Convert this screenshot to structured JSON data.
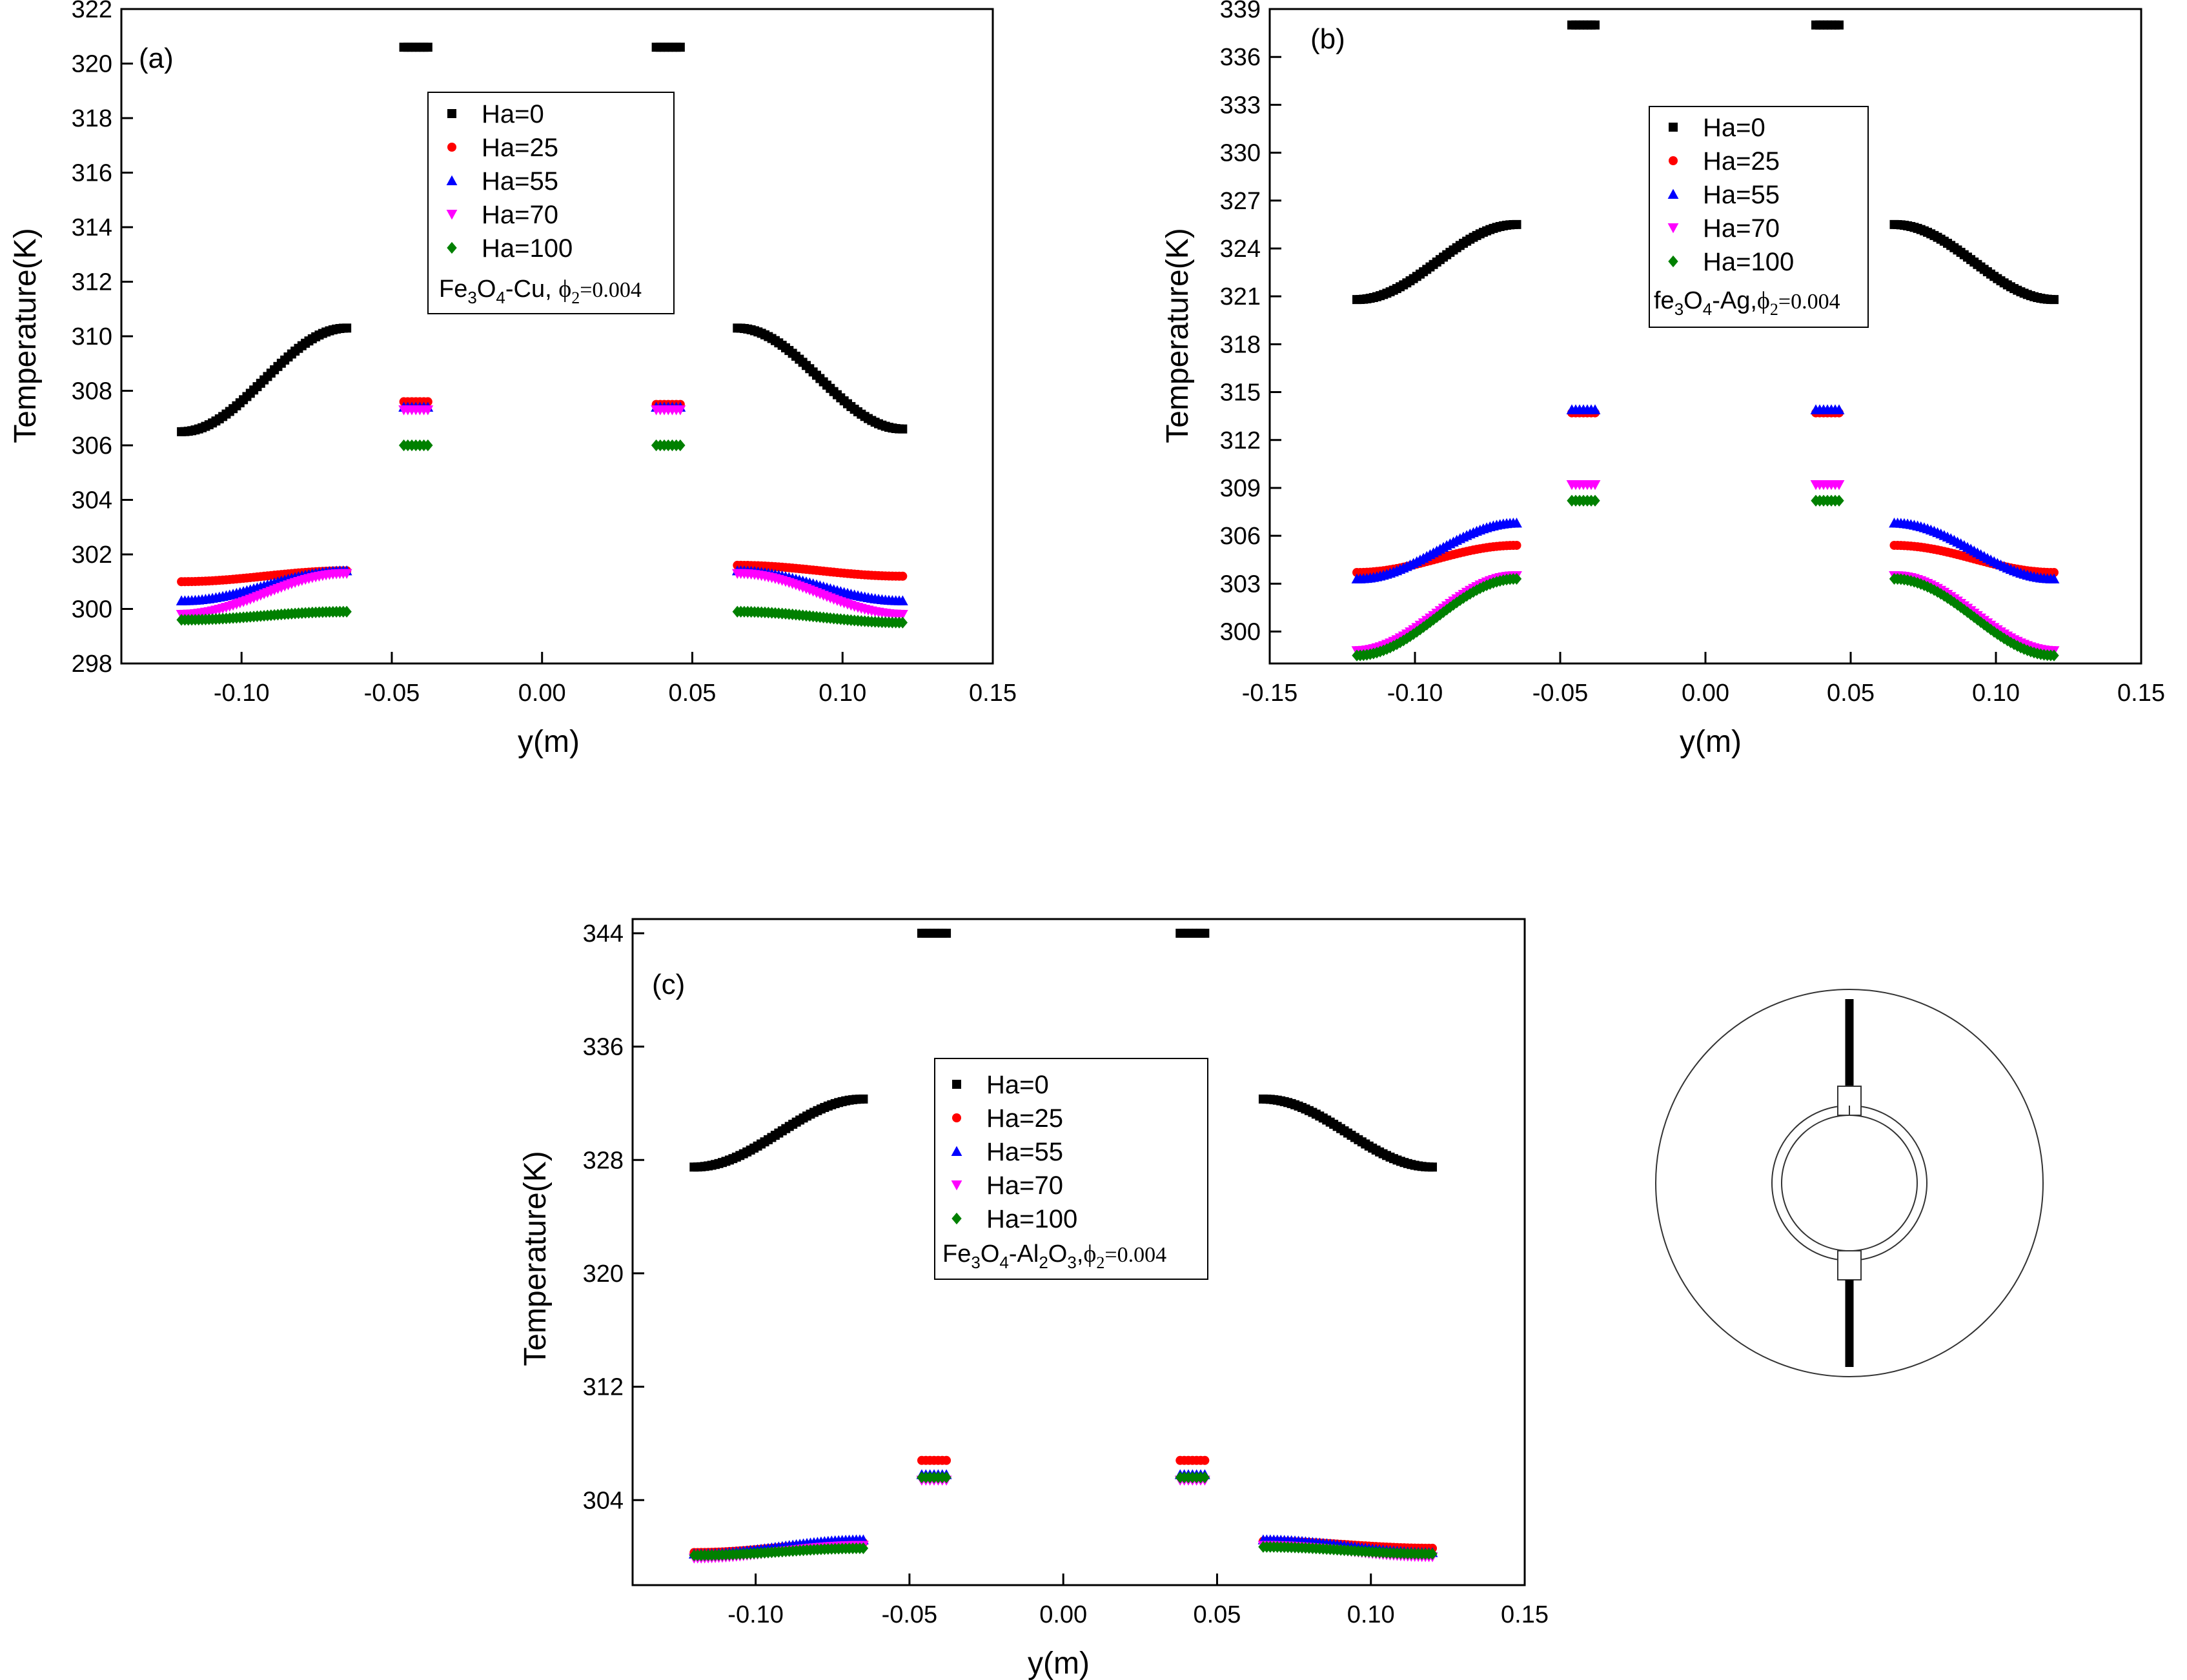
{
  "figure": {
    "inset": "cylinder-cross-section-diagram"
  },
  "colors": {
    "Ha=0": "#000000",
    "Ha=25": "#ff0000",
    "Ha=55": "#0000ff",
    "Ha=70": "#ff00ff",
    "Ha=100": "#008000"
  },
  "chart_data": [
    {
      "id": "a",
      "type": "scatter",
      "panel_label": "(a)",
      "title": "",
      "xlabel": "y(m)",
      "ylabel": "Temperature(K)",
      "xlim": [
        -0.14,
        0.15
      ],
      "ylim": [
        298,
        322
      ],
      "xticks": [
        -0.1,
        -0.05,
        0.0,
        0.05,
        0.1,
        0.15
      ],
      "xtick_labels": [
        "-0.10",
        "-0.05",
        "0.00",
        "0.05",
        "0.10",
        "0.15"
      ],
      "yticks": [
        298,
        300,
        302,
        304,
        306,
        308,
        310,
        312,
        314,
        316,
        318,
        320,
        322
      ],
      "legend": {
        "position": "top-center",
        "entries": [
          "Ha=0",
          "Ha=25",
          "Ha=55",
          "Ha=70",
          "Ha=100"
        ],
        "annotation": {
          "main": "Fe",
          "s1": "3",
          "mid": "O",
          "s2": "4",
          "tail": "-Cu, ",
          "phi": "ϕ",
          "phisub": "2",
          "value": "=0.004"
        }
      },
      "series": [
        {
          "name": "Ha=0",
          "marker": "square",
          "left": {
            "x": [
              -0.12,
              -0.065
            ],
            "y": [
              306.5,
              310.3
            ]
          },
          "right": {
            "x": [
              0.065,
              0.12
            ],
            "y": [
              310.3,
              306.6
            ]
          },
          "block_left": {
            "x": [
              -0.046,
              -0.038
            ],
            "y": 320.6
          },
          "block_right": {
            "x": [
              0.038,
              0.046
            ],
            "y": 320.6
          }
        },
        {
          "name": "Ha=25",
          "marker": "circle",
          "left": {
            "x": [
              -0.12,
              -0.065
            ],
            "y": [
              301.0,
              301.4
            ]
          },
          "right": {
            "x": [
              0.065,
              0.12
            ],
            "y": [
              301.6,
              301.2
            ]
          },
          "block_left": {
            "x": [
              -0.046,
              -0.038
            ],
            "y": 307.6
          },
          "block_right": {
            "x": [
              0.038,
              0.046
            ],
            "y": 307.5
          }
        },
        {
          "name": "Ha=55",
          "marker": "triangle-up",
          "left": {
            "x": [
              -0.12,
              -0.065
            ],
            "y": [
              300.3,
              301.4
            ]
          },
          "right": {
            "x": [
              0.065,
              0.12
            ],
            "y": [
              301.4,
              300.3
            ]
          },
          "block_left": {
            "x": [
              -0.046,
              -0.038
            ],
            "y": 307.4
          },
          "block_right": {
            "x": [
              0.038,
              0.046
            ],
            "y": 307.4
          }
        },
        {
          "name": "Ha=70",
          "marker": "triangle-down",
          "left": {
            "x": [
              -0.12,
              -0.065
            ],
            "y": [
              299.8,
              301.3
            ]
          },
          "right": {
            "x": [
              0.065,
              0.12
            ],
            "y": [
              301.3,
              299.8
            ]
          },
          "block_left": {
            "x": [
              -0.046,
              -0.038
            ],
            "y": 307.3
          },
          "block_right": {
            "x": [
              0.038,
              0.046
            ],
            "y": 307.3
          }
        },
        {
          "name": "Ha=100",
          "marker": "diamond",
          "left": {
            "x": [
              -0.12,
              -0.065
            ],
            "y": [
              299.6,
              299.9
            ]
          },
          "right": {
            "x": [
              0.065,
              0.12
            ],
            "y": [
              299.9,
              299.5
            ]
          },
          "block_left": {
            "x": [
              -0.046,
              -0.038
            ],
            "y": 306.0
          },
          "block_right": {
            "x": [
              0.038,
              0.046
            ],
            "y": 306.0
          }
        }
      ]
    },
    {
      "id": "b",
      "type": "scatter",
      "panel_label": "(b)",
      "title": "",
      "xlabel": "y(m)",
      "ylabel": "Temperature(K)",
      "xlim": [
        -0.15,
        0.15
      ],
      "ylim": [
        298,
        339
      ],
      "xticks": [
        -0.15,
        -0.1,
        -0.05,
        0.0,
        0.05,
        0.1,
        0.15
      ],
      "xtick_labels": [
        "-0.15",
        "-0.10",
        "-0.05",
        "0.00",
        "0.05",
        "0.10",
        "0.15"
      ],
      "yticks": [
        300,
        303,
        306,
        309,
        312,
        315,
        318,
        321,
        324,
        327,
        330,
        333,
        336,
        339
      ],
      "legend": {
        "position": "top-right",
        "entries": [
          "Ha=0",
          "Ha=25",
          "Ha=55",
          "Ha=70",
          "Ha=100"
        ],
        "annotation": {
          "main": "fe",
          "s1": "3",
          "mid": "O",
          "s2": "4",
          "tail": "-Ag,",
          "phi": "ϕ",
          "phisub": "2",
          "value": "=0.004"
        }
      },
      "series": [
        {
          "name": "Ha=0",
          "marker": "square",
          "left": {
            "x": [
              -0.12,
              -0.065
            ],
            "y": [
              320.8,
              325.5
            ]
          },
          "right": {
            "x": [
              0.065,
              0.12
            ],
            "y": [
              325.5,
              320.8
            ]
          },
          "block_left": {
            "x": [
              -0.046,
              -0.038
            ],
            "y": 338.0
          },
          "block_right": {
            "x": [
              0.038,
              0.046
            ],
            "y": 338.0
          }
        },
        {
          "name": "Ha=25",
          "marker": "circle",
          "left": {
            "x": [
              -0.12,
              -0.065
            ],
            "y": [
              303.7,
              305.4
            ]
          },
          "right": {
            "x": [
              0.065,
              0.12
            ],
            "y": [
              305.4,
              303.7
            ]
          },
          "block_left": {
            "x": [
              -0.046,
              -0.038
            ],
            "y": 313.7
          },
          "block_right": {
            "x": [
              0.038,
              0.046
            ],
            "y": 313.7
          }
        },
        {
          "name": "Ha=55",
          "marker": "triangle-up",
          "left": {
            "x": [
              -0.12,
              -0.065
            ],
            "y": [
              303.3,
              306.8
            ]
          },
          "right": {
            "x": [
              0.065,
              0.12
            ],
            "y": [
              306.8,
              303.3
            ]
          },
          "block_left": {
            "x": [
              -0.046,
              -0.038
            ],
            "y": 313.9
          },
          "block_right": {
            "x": [
              0.038,
              0.046
            ],
            "y": 313.9
          }
        },
        {
          "name": "Ha=70",
          "marker": "triangle-down",
          "left": {
            "x": [
              -0.12,
              -0.065
            ],
            "y": [
              298.8,
              303.5
            ]
          },
          "right": {
            "x": [
              0.065,
              0.12
            ],
            "y": [
              303.5,
              298.8
            ]
          },
          "block_left": {
            "x": [
              -0.046,
              -0.038
            ],
            "y": 309.2
          },
          "block_right": {
            "x": [
              0.038,
              0.046
            ],
            "y": 309.2
          }
        },
        {
          "name": "Ha=100",
          "marker": "diamond",
          "left": {
            "x": [
              -0.12,
              -0.065
            ],
            "y": [
              298.5,
              303.3
            ]
          },
          "right": {
            "x": [
              0.065,
              0.12
            ],
            "y": [
              303.3,
              298.5
            ]
          },
          "block_left": {
            "x": [
              -0.046,
              -0.038
            ],
            "y": 308.2
          },
          "block_right": {
            "x": [
              0.038,
              0.046
            ],
            "y": 308.2
          }
        }
      ]
    },
    {
      "id": "c",
      "type": "scatter",
      "panel_label": "(c)",
      "title": "",
      "xlabel": "y(m)",
      "ylabel": "Temperature(K)",
      "xlim": [
        -0.14,
        0.15
      ],
      "ylim": [
        298,
        345
      ],
      "xticks": [
        -0.1,
        -0.05,
        0.0,
        0.05,
        0.1,
        0.15
      ],
      "xtick_labels": [
        "-0.10",
        "-0.05",
        "0.00",
        "0.05",
        "0.10",
        "0.15"
      ],
      "yticks": [
        304,
        312,
        320,
        328,
        336,
        344
      ],
      "legend": {
        "position": "center",
        "entries": [
          "Ha=0",
          "Ha=25",
          "Ha=55",
          "Ha=70",
          "Ha=100"
        ],
        "annotation": {
          "main": "Fe",
          "s1": "3",
          "mid": "O",
          "s2": "4",
          "tail": "-Al",
          "s3": "2",
          "mid2": "O",
          "s4": "3",
          "sep": ",",
          "phi": "ϕ",
          "phisub": "2",
          "value": "=0.004"
        }
      },
      "series": [
        {
          "name": "Ha=0",
          "marker": "square",
          "left": {
            "x": [
              -0.12,
              -0.065
            ],
            "y": [
              327.5,
              332.3
            ]
          },
          "right": {
            "x": [
              0.065,
              0.12
            ],
            "y": [
              332.3,
              327.5
            ]
          },
          "block_left": {
            "x": [
              -0.046,
              -0.038
            ],
            "y": 344.0
          },
          "block_right": {
            "x": [
              0.038,
              0.046
            ],
            "y": 344.0
          }
        },
        {
          "name": "Ha=25",
          "marker": "circle",
          "left": {
            "x": [
              -0.12,
              -0.065
            ],
            "y": [
              300.3,
              301.0
            ]
          },
          "right": {
            "x": [
              0.065,
              0.12
            ],
            "y": [
              301.1,
              300.6
            ]
          },
          "block_left": {
            "x": [
              -0.046,
              -0.038
            ],
            "y": 306.8
          },
          "block_right": {
            "x": [
              0.038,
              0.046
            ],
            "y": 306.8
          }
        },
        {
          "name": "Ha=55",
          "marker": "triangle-up",
          "left": {
            "x": [
              -0.12,
              -0.065
            ],
            "y": [
              300.2,
              301.2
            ]
          },
          "right": {
            "x": [
              0.065,
              0.12
            ],
            "y": [
              301.2,
              300.3
            ]
          },
          "block_left": {
            "x": [
              -0.046,
              -0.038
            ],
            "y": 305.8
          },
          "block_right": {
            "x": [
              0.038,
              0.046
            ],
            "y": 305.8
          }
        },
        {
          "name": "Ha=70",
          "marker": "triangle-down",
          "left": {
            "x": [
              -0.12,
              -0.065
            ],
            "y": [
              299.9,
              300.8
            ]
          },
          "right": {
            "x": [
              0.065,
              0.12
            ],
            "y": [
              300.8,
              300.0
            ]
          },
          "block_left": {
            "x": [
              -0.046,
              -0.038
            ],
            "y": 305.4
          },
          "block_right": {
            "x": [
              0.038,
              0.046
            ],
            "y": 305.4
          }
        },
        {
          "name": "Ha=100",
          "marker": "diamond",
          "left": {
            "x": [
              -0.12,
              -0.065
            ],
            "y": [
              300.1,
              300.6
            ]
          },
          "right": {
            "x": [
              0.065,
              0.12
            ],
            "y": [
              300.7,
              300.2
            ]
          },
          "block_left": {
            "x": [
              -0.046,
              -0.038
            ],
            "y": 305.6
          },
          "block_right": {
            "x": [
              0.038,
              0.046
            ],
            "y": 305.6
          }
        }
      ]
    }
  ]
}
